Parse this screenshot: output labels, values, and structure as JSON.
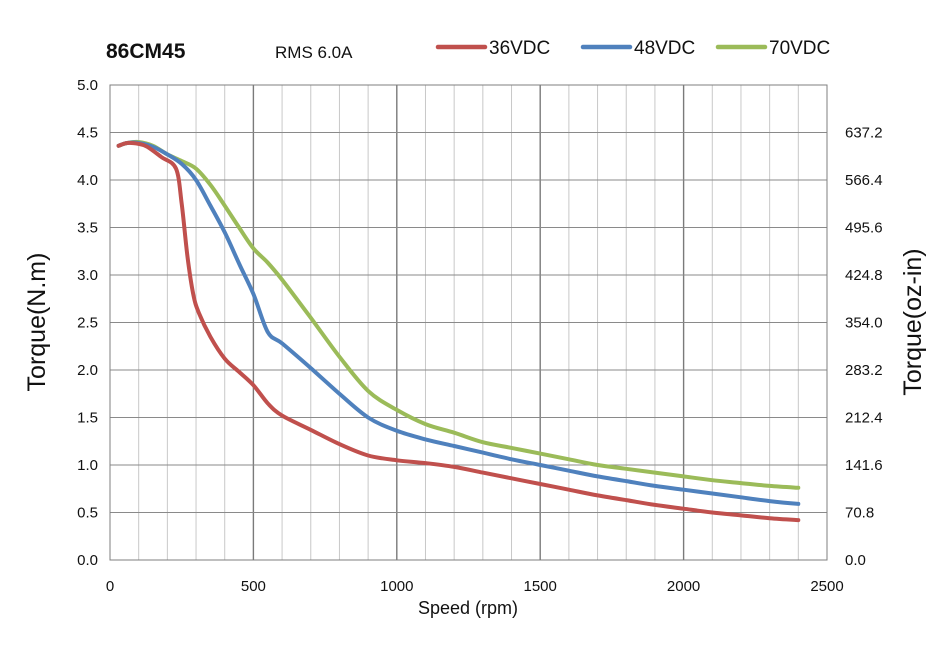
{
  "chart_data": {
    "type": "line",
    "title": "86CM45",
    "subtitle": "RMS 6.0A",
    "xlabel": "Speed (rpm)",
    "ylabel": "Torque(N.m)",
    "y2label": "Torque(oz-in)",
    "xlim": [
      0,
      2500
    ],
    "ylim": [
      0,
      5.0
    ],
    "x_ticks": [
      "0",
      "500",
      "1000",
      "1500",
      "2000",
      "2500"
    ],
    "y_ticks": [
      "0.0",
      "0.5",
      "1.0",
      "1.5",
      "2.0",
      "2.5",
      "3.0",
      "3.5",
      "4.0",
      "4.5",
      "5.0"
    ],
    "y2_ticks": [
      "0.0",
      "70.8",
      "141.6",
      "212.4",
      "283.2",
      "354.0",
      "424.8",
      "495.6",
      "566.4",
      "637.2"
    ],
    "grid": true,
    "legend_position": "top",
    "series": [
      {
        "name": "36VDC",
        "color": "#c0504d",
        "x": [
          30,
          60,
          100,
          130,
          180,
          230,
          250,
          270,
          290,
          310,
          350,
          400,
          450,
          500,
          550,
          600,
          700,
          800,
          900,
          1000,
          1100,
          1200,
          1300,
          1400,
          1500,
          1600,
          1700,
          1800,
          1900,
          2000,
          2100,
          2200,
          2300,
          2400
        ],
        "y": [
          4.36,
          4.39,
          4.38,
          4.35,
          4.24,
          4.12,
          3.75,
          3.2,
          2.8,
          2.6,
          2.35,
          2.12,
          1.98,
          1.84,
          1.65,
          1.52,
          1.37,
          1.22,
          1.1,
          1.05,
          1.02,
          0.98,
          0.92,
          0.86,
          0.8,
          0.74,
          0.68,
          0.63,
          0.58,
          0.54,
          0.5,
          0.47,
          0.44,
          0.42
        ]
      },
      {
        "name": "48VDC",
        "color": "#4f81bd",
        "x": [
          30,
          60,
          100,
          150,
          200,
          250,
          300,
          350,
          400,
          450,
          500,
          550,
          600,
          700,
          800,
          900,
          1000,
          1100,
          1200,
          1300,
          1400,
          1500,
          1600,
          1700,
          1800,
          1900,
          2000,
          2100,
          2200,
          2300,
          2400
        ],
        "y": [
          4.36,
          4.39,
          4.39,
          4.35,
          4.27,
          4.17,
          4.0,
          3.73,
          3.45,
          3.12,
          2.8,
          2.4,
          2.28,
          2.02,
          1.75,
          1.5,
          1.36,
          1.27,
          1.2,
          1.13,
          1.06,
          1.0,
          0.94,
          0.88,
          0.83,
          0.78,
          0.74,
          0.7,
          0.66,
          0.62,
          0.59
        ]
      },
      {
        "name": "70VDC",
        "color": "#9bbb59",
        "x": [
          30,
          60,
          100,
          150,
          200,
          250,
          300,
          350,
          400,
          450,
          500,
          550,
          600,
          700,
          800,
          900,
          1000,
          1100,
          1200,
          1300,
          1400,
          1500,
          1600,
          1700,
          1800,
          1900,
          2000,
          2100,
          2200,
          2300,
          2400
        ],
        "y": [
          4.36,
          4.39,
          4.4,
          4.36,
          4.27,
          4.2,
          4.12,
          3.95,
          3.73,
          3.5,
          3.28,
          3.13,
          2.95,
          2.55,
          2.14,
          1.78,
          1.58,
          1.43,
          1.34,
          1.24,
          1.18,
          1.12,
          1.06,
          1.0,
          0.96,
          0.92,
          0.88,
          0.84,
          0.81,
          0.78,
          0.76
        ]
      }
    ]
  }
}
